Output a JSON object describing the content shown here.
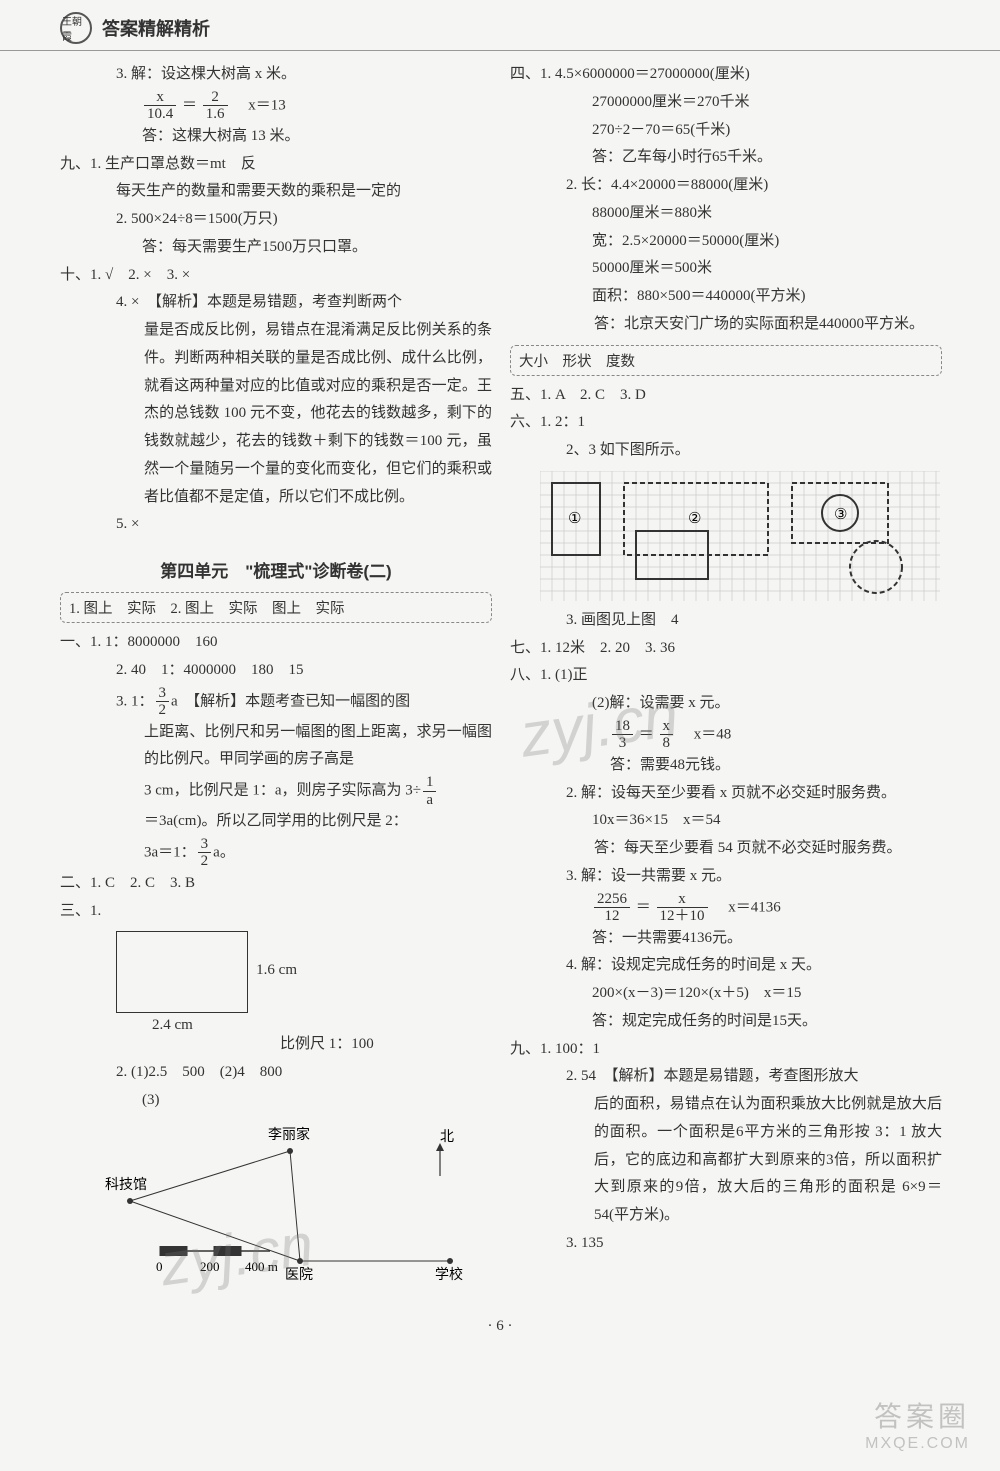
{
  "header": {
    "logo_text": "王朝霞",
    "title": "答案精解精析"
  },
  "left": {
    "q3": {
      "l1": "3. 解：设这棵大树高 x 米。",
      "eq_lhs_num": "x",
      "eq_lhs_den": "10.4",
      "eq_rhs_num": "2",
      "eq_rhs_den": "1.6",
      "eq_sol": "x＝13",
      "ans": "答：这棵大树高 13 米。"
    },
    "nine": {
      "i1": "九、1. 生产口罩总数＝mt　反",
      "i1b": "每天生产的数量和需要天数的乘积是一定的",
      "i2": "2. 500×24÷8＝1500(万只)",
      "i2b": "答：每天需要生产1500万只口罩。"
    },
    "ten": {
      "head": "十、1. √　2. ×　3. ×",
      "i4_lead": "4. ×　【解析】本题是易错题，考查判断两个",
      "i4_body": "量是否成反比例，易错点在混淆满足反比例关系的条件。判断两种相关联的量是否成比例、成什么比例，就看这两种量对应的比值或对应的乘积是否一定。王杰的总钱数 100 元不变，他花去的钱数越多，剩下的钱数就越少，花去的钱数＋剩下的钱数＝100 元，虽然一个量随另一个量的变化而变化，但它们的乘积或者比值都不是定值，所以它们不成比例。",
      "i5": "5. ×"
    },
    "sec_title": "第四单元　\"梳理式\"诊断卷(二)",
    "box1": "1. 图上　实际　2. 图上　实际　图上　实际",
    "one": {
      "i1": "一、1. 1：8000000　160",
      "i2": "2. 40　1：4000000　180　15",
      "i3_lead": "3. 1：",
      "i3_frac_num": "3",
      "i3_frac_den": "2",
      "i3_a": "a　【解析】本题考查已知一幅图的图",
      "i3_body1": "上距离、比例尺和另一幅图的图上距离，求另一幅图的比例尺。甲同学画的房子高是",
      "i3_body2_a": "3 cm，比例尺是 1：a，则房子实际高为 3÷",
      "i3_body2_frac_num": "1",
      "i3_body2_frac_den": "a",
      "i3_body3": "＝3a(cm)。所以乙同学用的比例尺是 2：",
      "i3_body4_a": "3a＝1：",
      "i3_body4_frac_num": "3",
      "i3_body4_frac_den": "2",
      "i3_body4_b": "a。"
    },
    "two": "二、1. C　2. C　3. B",
    "three": {
      "head": "三、1.",
      "side_r": "1.6 cm",
      "side_b": "2.4 cm",
      "scale": "比例尺 1：100",
      "i2": "2. (1)2.5　500　(2)4　800",
      "i3": "(3)"
    },
    "map": {
      "li": "李丽家",
      "kj": "科技馆",
      "yy": "医院",
      "xx": "学校",
      "north": "北",
      "s0": "0",
      "s2": "200",
      "s4": "400 m"
    }
  },
  "right": {
    "four": {
      "i1_l1": "四、1. 4.5×6000000＝27000000(厘米)",
      "i1_l2": "27000000厘米＝270千米",
      "i1_l3": "270÷2－70＝65(千米)",
      "i1_l4": "答：乙车每小时行65千米。",
      "i2_l1": "2. 长：4.4×20000＝88000(厘米)",
      "i2_l2": "88000厘米＝880米",
      "i2_l3": "宽：2.5×20000＝50000(厘米)",
      "i2_l4": "50000厘米＝500米",
      "i2_l5": "面积：880×500＝440000(平方米)",
      "i2_l6": "答：北京天安门广场的实际面积是440000平方米。"
    },
    "box2": "大小　形状　度数",
    "five": "五、1. A　2. C　3. D",
    "six": {
      "i1": "六、1. 2：1",
      "i23": "2、3 如下图所示。",
      "labels": {
        "a": "①",
        "b": "②",
        "c": "③"
      },
      "i3b": "3. 画图见上图　4"
    },
    "seven": "七、1. 12米　2. 20　3. 36",
    "eight": {
      "i1a": "八、1. (1)正",
      "i1b": "(2)解：设需要 x 元。",
      "eq1_lhs_num": "18",
      "eq1_lhs_den": "3",
      "eq1_rhs_num": "x",
      "eq1_rhs_den": "8",
      "eq1_sol": "x＝48",
      "i1ans": "答：需要48元钱。",
      "i2a": "2. 解：设每天至少要看 x 页就不必交延时服务费。",
      "i2b": "10x＝36×15　x＝54",
      "i2ans": "答：每天至少要看 54 页就不必交延时服务费。",
      "i3a": "3. 解：设一共需要 x 元。",
      "eq3_lhs_num": "2256",
      "eq3_lhs_den": "12",
      "eq3_rhs_num": "x",
      "eq3_rhs_den": "12＋10",
      "eq3_sol": "x＝4136",
      "i3ans": "答：一共需要4136元。",
      "i4a": "4. 解：设规定完成任务的时间是 x 天。",
      "i4b": "200×(x－3)＝120×(x＋5)　x＝15",
      "i4ans": "答：规定完成任务的时间是15天。"
    },
    "nine": {
      "i1": "九、1. 100：1",
      "i2_lead": "2. 54　【解析】本题是易错题，考查图形放大",
      "i2_body": "后的面积，易错点在认为面积乘放大比例就是放大后的面积。一个面积是6平方米的三角形按 3：1 放大后，它的底边和高都扩大到原来的3倍，所以面积扩大到原来的9倍，放大后的三角形的面积是 6×9＝54(平方米)。",
      "i3": "3. 135"
    }
  },
  "footer": {
    "page": "· 6 ·"
  },
  "watermarks": {
    "w": "zyj.cn"
  },
  "brand": {
    "cn": "答案圈",
    "en": "MXQE.COM"
  },
  "colors": {
    "text": "#333333",
    "border": "#888888",
    "bg": "#f5f5f3"
  }
}
